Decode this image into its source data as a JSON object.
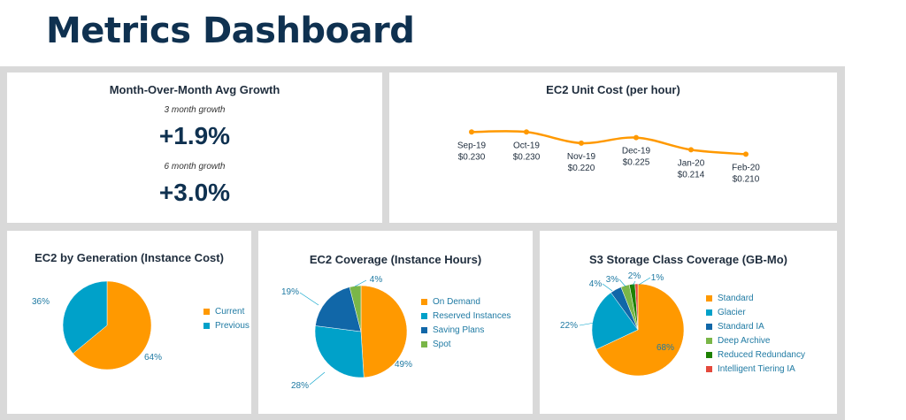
{
  "page": {
    "title": "Metrics Dashboard"
  },
  "growth": {
    "title": "Month-Over-Month Avg Growth",
    "label_3m": "3 month growth",
    "value_3m": "+1.9%",
    "label_6m": "6 month growth",
    "value_6m": "+3.0%"
  },
  "colors": {
    "orange": "#ff9900",
    "teal": "#00a1c9",
    "navy": "#1167a8",
    "green": "#7ab648",
    "darkgreen": "#1d8102",
    "red": "#e4493c"
  },
  "charts": {
    "unit_cost": {
      "title": "EC2 Unit Cost (per hour)",
      "chart_data": {
        "type": "line",
        "x": [
          "Sep-19",
          "Oct-19",
          "Nov-19",
          "Dec-19",
          "Jan-20",
          "Feb-20"
        ],
        "y": [
          0.23,
          0.23,
          0.22,
          0.225,
          0.214,
          0.21
        ],
        "labels": [
          "$0.230",
          "$0.230",
          "$0.220",
          "$0.225",
          "$0.214",
          "$0.210"
        ],
        "ylim": [
          0.2,
          0.235
        ]
      }
    },
    "generation": {
      "title": "EC2 by Generation (Instance Cost)",
      "chart_data": {
        "type": "pie",
        "categories": [
          "Current",
          "Previous"
        ],
        "values": [
          64,
          36
        ],
        "labels": [
          "64%",
          "36%"
        ]
      }
    },
    "coverage": {
      "title": "EC2 Coverage (Instance Hours)",
      "chart_data": {
        "type": "pie",
        "categories": [
          "On Demand",
          "Reserved Instances",
          "Saving Plans",
          "Spot"
        ],
        "values": [
          49,
          28,
          19,
          4
        ],
        "labels": [
          "49%",
          "28%",
          "19%",
          "4%"
        ]
      }
    },
    "s3": {
      "title": "S3 Storage Class Coverage (GB-Mo)",
      "chart_data": {
        "type": "pie",
        "categories": [
          "Standard",
          "Glacier",
          "Standard IA",
          "Deep Archive",
          "Reduced Redundancy",
          "Intelligent Tiering IA"
        ],
        "values": [
          68,
          22,
          4,
          3,
          2,
          1
        ],
        "labels": [
          "68%",
          "22%",
          "4%",
          "3%",
          "2%",
          "1%"
        ]
      }
    }
  }
}
